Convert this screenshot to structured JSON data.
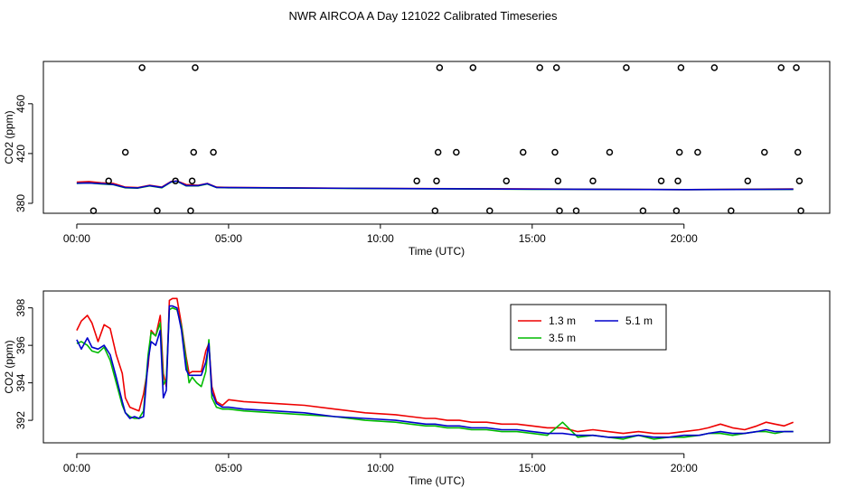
{
  "title": "NWR AIRCOA A  Day 121022  Calibrated Timeseries",
  "colors": {
    "h13": "#ee0000",
    "h35": "#00bb00",
    "h51": "#0000cc",
    "frame": "#000000"
  },
  "chart_data": [
    {
      "type": "scatter+line",
      "xlabel": "Time (UTC)",
      "ylabel": "CO2 (ppm)",
      "xlim": [
        -1.1,
        24.8
      ],
      "ylim": [
        372,
        494
      ],
      "xticks": [
        0,
        5,
        10,
        15,
        20
      ],
      "xtick_labels": [
        "00:00",
        "05:00",
        "10:00",
        "15:00",
        "20:00"
      ],
      "yticks": [
        380,
        420,
        460
      ],
      "ytick_labels": [
        "380",
        "420",
        "460"
      ],
      "reference_points": [
        {
          "x": 0.55,
          "y": 374
        },
        {
          "x": 1.05,
          "y": 398
        },
        {
          "x": 1.6,
          "y": 421
        },
        {
          "x": 2.15,
          "y": 489
        },
        {
          "x": 2.65,
          "y": 374
        },
        {
          "x": 3.25,
          "y": 398
        },
        {
          "x": 3.75,
          "y": 374
        },
        {
          "x": 3.8,
          "y": 398
        },
        {
          "x": 3.85,
          "y": 421
        },
        {
          "x": 3.9,
          "y": 489
        },
        {
          "x": 4.5,
          "y": 421
        },
        {
          "x": 11.2,
          "y": 398
        },
        {
          "x": 11.8,
          "y": 374
        },
        {
          "x": 11.85,
          "y": 398
        },
        {
          "x": 11.9,
          "y": 421
        },
        {
          "x": 11.95,
          "y": 489
        },
        {
          "x": 12.5,
          "y": 421
        },
        {
          "x": 13.05,
          "y": 489
        },
        {
          "x": 13.6,
          "y": 374
        },
        {
          "x": 14.15,
          "y": 398
        },
        {
          "x": 14.7,
          "y": 421
        },
        {
          "x": 15.25,
          "y": 489
        },
        {
          "x": 15.75,
          "y": 421
        },
        {
          "x": 15.8,
          "y": 489
        },
        {
          "x": 15.85,
          "y": 398
        },
        {
          "x": 15.9,
          "y": 374
        },
        {
          "x": 16.45,
          "y": 374
        },
        {
          "x": 17.0,
          "y": 398
        },
        {
          "x": 17.55,
          "y": 421
        },
        {
          "x": 18.1,
          "y": 489
        },
        {
          "x": 18.65,
          "y": 374
        },
        {
          "x": 19.25,
          "y": 398
        },
        {
          "x": 19.75,
          "y": 374
        },
        {
          "x": 19.8,
          "y": 398
        },
        {
          "x": 19.85,
          "y": 421
        },
        {
          "x": 19.9,
          "y": 489
        },
        {
          "x": 20.45,
          "y": 421
        },
        {
          "x": 21.0,
          "y": 489
        },
        {
          "x": 21.55,
          "y": 374
        },
        {
          "x": 22.1,
          "y": 398
        },
        {
          "x": 22.65,
          "y": 421
        },
        {
          "x": 23.2,
          "y": 489
        },
        {
          "x": 23.7,
          "y": 489
        },
        {
          "x": 23.75,
          "y": 421
        },
        {
          "x": 23.8,
          "y": 398
        },
        {
          "x": 23.85,
          "y": 374
        }
      ],
      "series": [
        {
          "name": "1.3 m",
          "color": "#ee0000",
          "x": [
            0,
            0.4,
            0.8,
            1.2,
            1.6,
            2.0,
            2.4,
            2.8,
            3.1,
            3.3,
            3.6,
            4.0,
            4.3,
            4.6,
            5.0,
            10,
            15,
            20,
            23.6
          ],
          "y": [
            397,
            397.5,
            396.5,
            396,
            393,
            392.6,
            394.5,
            393,
            397.5,
            398,
            395,
            394.5,
            396,
            393,
            392.8,
            392,
            391.5,
            391,
            391.5
          ]
        },
        {
          "name": "3.5 m",
          "color": "#00bb00",
          "x": [
            0,
            0.4,
            0.8,
            1.2,
            1.6,
            2.0,
            2.4,
            2.8,
            3.1,
            3.3,
            3.6,
            4.0,
            4.3,
            4.6,
            5.0,
            10,
            15,
            20,
            23.6
          ],
          "y": [
            396,
            396.3,
            395.5,
            395,
            392.5,
            392.2,
            394,
            392.5,
            397,
            397.8,
            394,
            394,
            395.5,
            392.7,
            392.5,
            391.8,
            391.3,
            391,
            391.2
          ]
        },
        {
          "name": "5.1 m",
          "color": "#0000cc",
          "x": [
            0,
            0.4,
            0.8,
            1.2,
            1.6,
            2.0,
            2.4,
            2.8,
            3.1,
            3.3,
            3.6,
            4.0,
            4.3,
            4.6,
            5.0,
            10,
            15,
            20,
            23.6
          ],
          "y": [
            396.2,
            396.4,
            395.8,
            395.2,
            392.7,
            392.3,
            394.2,
            392.8,
            397.2,
            397.9,
            394.2,
            394.2,
            395.8,
            392.8,
            392.6,
            391.9,
            391.4,
            391,
            391.3
          ]
        }
      ]
    },
    {
      "type": "line",
      "xlabel": "Time (UTC)",
      "ylabel": "CO2 (ppm)",
      "xlim": [
        -1.1,
        24.8
      ],
      "ylim": [
        390.8,
        398.9
      ],
      "xticks": [
        0,
        5,
        10,
        15,
        20
      ],
      "xtick_labels": [
        "00:00",
        "05:00",
        "10:00",
        "15:00",
        "20:00"
      ],
      "yticks": [
        392,
        394,
        396,
        398
      ],
      "ytick_labels": [
        "392",
        "394",
        "396",
        "398"
      ],
      "legend": [
        "1.3 m",
        "3.5 m",
        "5.1 m"
      ],
      "series": [
        {
          "name": "1.3 m",
          "color": "#ee0000",
          "x": [
            0,
            0.15,
            0.35,
            0.5,
            0.7,
            0.9,
            1.1,
            1.3,
            1.5,
            1.6,
            1.75,
            1.9,
            2.05,
            2.2,
            2.35,
            2.45,
            2.6,
            2.75,
            2.85,
            2.95,
            3.05,
            3.15,
            3.3,
            3.45,
            3.6,
            3.7,
            3.8,
            3.95,
            4.1,
            4.25,
            4.35,
            4.45,
            4.6,
            4.8,
            5.0,
            5.5,
            6.5,
            7.5,
            8.5,
            9.5,
            10.5,
            11.0,
            11.5,
            11.8,
            12.2,
            12.6,
            13.0,
            13.5,
            14.0,
            14.5,
            15.0,
            15.5,
            16.0,
            16.5,
            17.0,
            17.5,
            18.0,
            18.5,
            19.0,
            19.5,
            20.0,
            20.5,
            20.8,
            21.2,
            21.6,
            22.0,
            22.4,
            22.7,
            23.0,
            23.3,
            23.6
          ],
          "y": [
            396.8,
            397.3,
            397.6,
            397.2,
            396.2,
            397.1,
            396.9,
            395.5,
            394.5,
            393.2,
            392.7,
            392.6,
            392.5,
            393.4,
            394.9,
            396.8,
            396.5,
            397.6,
            394.5,
            393.8,
            398.4,
            398.5,
            398.5,
            397.1,
            395.4,
            394.5,
            394.6,
            394.6,
            394.6,
            395.7,
            396.1,
            393.8,
            393.0,
            392.8,
            393.1,
            393.0,
            392.9,
            392.8,
            392.6,
            392.4,
            392.3,
            392.2,
            392.1,
            392.1,
            392.0,
            392.0,
            391.9,
            391.9,
            391.8,
            391.8,
            391.7,
            391.6,
            391.6,
            391.4,
            391.5,
            391.4,
            391.3,
            391.4,
            391.3,
            391.3,
            391.4,
            391.5,
            391.6,
            391.8,
            391.6,
            391.5,
            391.7,
            391.9,
            391.8,
            391.7,
            391.9
          ]
        },
        {
          "name": "3.5 m",
          "color": "#00bb00",
          "x": [
            0,
            0.15,
            0.35,
            0.5,
            0.7,
            0.9,
            1.1,
            1.3,
            1.5,
            1.6,
            1.75,
            1.9,
            2.05,
            2.2,
            2.35,
            2.45,
            2.6,
            2.75,
            2.85,
            2.95,
            3.05,
            3.15,
            3.3,
            3.45,
            3.6,
            3.7,
            3.8,
            3.95,
            4.1,
            4.25,
            4.35,
            4.45,
            4.6,
            4.8,
            5.0,
            5.5,
            6.5,
            7.5,
            8.5,
            9.5,
            10.5,
            11.0,
            11.5,
            11.8,
            12.2,
            12.6,
            13.0,
            13.5,
            14.0,
            14.5,
            15.0,
            15.5,
            16.0,
            16.5,
            17.0,
            17.5,
            18.0,
            18.5,
            19.0,
            19.5,
            20.0,
            20.5,
            20.8,
            21.2,
            21.6,
            22.0,
            22.4,
            22.7,
            23.0,
            23.3,
            23.6
          ],
          "y": [
            396.1,
            396.2,
            396.0,
            395.7,
            395.6,
            395.9,
            395.2,
            394.0,
            392.8,
            392.4,
            392.2,
            392.1,
            392.1,
            392.5,
            395.5,
            396.7,
            396.5,
            397.2,
            393.9,
            394.2,
            397.9,
            398.0,
            397.9,
            397.0,
            395.2,
            394.0,
            394.3,
            394.0,
            393.8,
            394.6,
            396.3,
            393.2,
            392.7,
            392.6,
            392.6,
            392.5,
            392.4,
            392.3,
            392.2,
            392.0,
            391.9,
            391.8,
            391.7,
            391.7,
            391.6,
            391.6,
            391.5,
            391.5,
            391.4,
            391.4,
            391.3,
            391.2,
            391.9,
            391.1,
            391.2,
            391.1,
            391.0,
            391.2,
            391.0,
            391.1,
            391.1,
            391.2,
            391.3,
            391.3,
            391.2,
            391.3,
            391.4,
            391.4,
            391.3,
            391.4,
            391.4
          ]
        },
        {
          "name": "5.1 m",
          "color": "#0000cc",
          "x": [
            0,
            0.15,
            0.35,
            0.5,
            0.7,
            0.9,
            1.1,
            1.3,
            1.5,
            1.6,
            1.75,
            1.9,
            2.05,
            2.2,
            2.35,
            2.45,
            2.6,
            2.75,
            2.85,
            2.95,
            3.05,
            3.15,
            3.3,
            3.45,
            3.6,
            3.7,
            3.8,
            3.95,
            4.1,
            4.25,
            4.35,
            4.45,
            4.6,
            4.8,
            5.0,
            5.5,
            6.5,
            7.5,
            8.5,
            9.5,
            10.5,
            11.0,
            11.5,
            11.8,
            12.2,
            12.6,
            13.0,
            13.5,
            14.0,
            14.5,
            15.0,
            15.5,
            16.0,
            16.5,
            17.0,
            17.5,
            18.0,
            18.5,
            19.0,
            19.5,
            20.0,
            20.5,
            20.8,
            21.2,
            21.6,
            22.0,
            22.4,
            22.7,
            23.0,
            23.3,
            23.6
          ],
          "y": [
            396.3,
            395.8,
            396.4,
            395.9,
            395.8,
            396.0,
            395.5,
            394.3,
            393.0,
            392.4,
            392.1,
            392.2,
            392.1,
            392.2,
            395.2,
            396.2,
            396.0,
            396.8,
            393.2,
            393.6,
            398.1,
            398.1,
            398.0,
            396.8,
            394.7,
            394.4,
            394.4,
            394.4,
            394.4,
            395.1,
            396.1,
            393.5,
            392.9,
            392.7,
            392.7,
            392.6,
            392.5,
            392.4,
            392.2,
            392.1,
            392.0,
            391.9,
            391.8,
            391.8,
            391.7,
            391.7,
            391.6,
            391.6,
            391.5,
            391.5,
            391.4,
            391.3,
            391.3,
            391.2,
            391.2,
            391.1,
            391.1,
            391.2,
            391.1,
            391.1,
            391.2,
            391.2,
            391.3,
            391.4,
            391.3,
            391.3,
            391.4,
            391.5,
            391.4,
            391.4,
            391.4
          ]
        }
      ]
    }
  ]
}
